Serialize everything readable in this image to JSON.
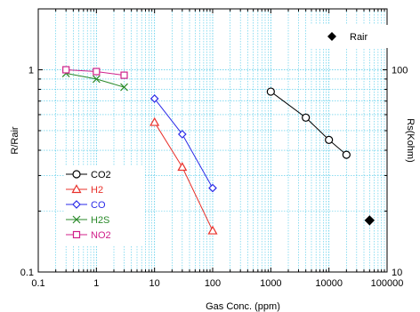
{
  "chart_data": {
    "type": "line",
    "xlabel": "Gas Conc. (ppm)",
    "ylabel": "R/Rair",
    "y2label": "Rs(Kohm)",
    "xscale": "log",
    "yscale": "log",
    "xlim": [
      0.1,
      100000
    ],
    "ylim": [
      0.1,
      2
    ],
    "y2lim": [
      10,
      200
    ],
    "x_tick_values": [
      0.1,
      1,
      10,
      100,
      1000,
      10000,
      100000
    ],
    "x_tick_labels": [
      "0.1",
      "1",
      "10",
      "100",
      "1000",
      "10000",
      "100000"
    ],
    "y_tick_values": [
      0.1,
      1
    ],
    "y_tick_labels": [
      "0.1",
      "1"
    ],
    "y2_tick_values": [
      10,
      100
    ],
    "y2_tick_labels": [
      "10",
      "100"
    ],
    "grid": true,
    "legend_position": "bottom-left",
    "series": [
      {
        "name": "CO2",
        "color": "#000000",
        "marker": "circle",
        "x": [
          1000,
          4000,
          10000,
          20000
        ],
        "y": [
          0.78,
          0.58,
          0.45,
          0.38
        ]
      },
      {
        "name": "H2",
        "color": "#e8302a",
        "marker": "triangle",
        "x": [
          10,
          30,
          100
        ],
        "y": [
          0.55,
          0.33,
          0.16
        ]
      },
      {
        "name": "CO",
        "color": "#2a2ae8",
        "marker": "diamond",
        "x": [
          10,
          30,
          100
        ],
        "y": [
          0.72,
          0.48,
          0.26
        ]
      },
      {
        "name": "H2S",
        "color": "#2a8a2a",
        "marker": "x",
        "x": [
          0.3,
          1,
          3
        ],
        "y": [
          0.96,
          0.9,
          0.82
        ]
      },
      {
        "name": "NO2",
        "color": "#d0208a",
        "marker": "square",
        "x": [
          0.3,
          1,
          3
        ],
        "y": [
          1.0,
          0.98,
          0.94
        ]
      }
    ],
    "reference": {
      "name": "Rair",
      "color": "#000000",
      "marker": "filled-diamond",
      "x": [
        50000
      ],
      "y": [
        0.18
      ]
    }
  }
}
